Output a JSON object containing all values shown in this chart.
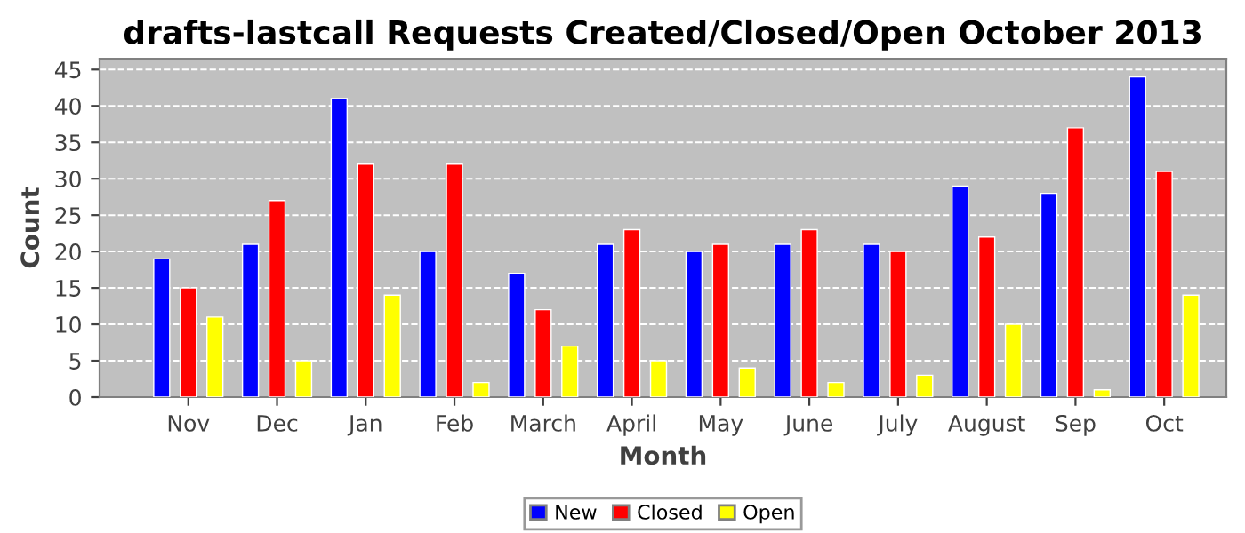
{
  "chart_data": {
    "type": "bar",
    "title": "drafts-lastcall Requests Created/Closed/Open October 2013",
    "xlabel": "Month",
    "ylabel": "Count",
    "categories": [
      "Nov",
      "Dec",
      "Jan",
      "Feb",
      "March",
      "April",
      "May",
      "June",
      "July",
      "August",
      "Sep",
      "Oct"
    ],
    "series": [
      {
        "name": "New",
        "color": "#0000ff",
        "values": [
          19,
          21,
          41,
          20,
          17,
          21,
          20,
          21,
          21,
          29,
          28,
          44
        ]
      },
      {
        "name": "Closed",
        "color": "#ff0000",
        "values": [
          15,
          27,
          32,
          32,
          12,
          23,
          21,
          23,
          20,
          22,
          37,
          31
        ]
      },
      {
        "name": "Open",
        "color": "#ffff00",
        "values": [
          11,
          5,
          14,
          2,
          7,
          5,
          4,
          2,
          3,
          10,
          1,
          14
        ]
      }
    ],
    "ylim": [
      0,
      46.5
    ],
    "yticks": [
      0,
      5,
      10,
      15,
      20,
      25,
      30,
      35,
      40,
      45
    ],
    "grid": "y",
    "legend": "bottom"
  }
}
